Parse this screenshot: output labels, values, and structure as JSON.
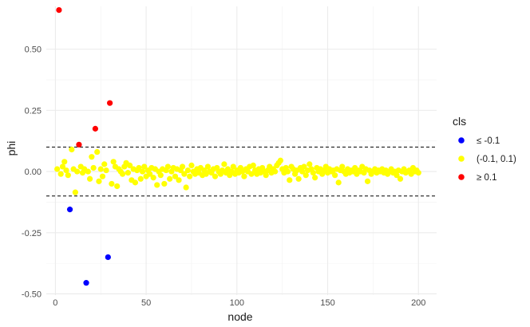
{
  "chart_data": {
    "type": "scatter",
    "xlabel": "node",
    "ylabel": "phi",
    "xlim": [
      -5,
      210
    ],
    "ylim": [
      -0.505,
      0.675
    ],
    "x_ticks": [
      0,
      50,
      100,
      150,
      200
    ],
    "x_tick_labels": [
      "0",
      "50",
      "100",
      "150",
      "200"
    ],
    "y_ticks": [
      -0.5,
      -0.25,
      0,
      0.25,
      0.5
    ],
    "y_tick_labels": [
      "-0.50",
      "-0.25",
      "0.00",
      "0.25",
      "0.50"
    ],
    "grid": true,
    "reference_lines": [
      0.1,
      -0.1
    ],
    "legend": {
      "title": "cls",
      "position": "right",
      "entries": [
        {
          "label": "≤ -0.1",
          "color": "#0000ff"
        },
        {
          "label": "(-0.1, 0.1)",
          "color": "#ffff00"
        },
        {
          "label": "≥ 0.1",
          "color": "#ff0000"
        }
      ]
    },
    "series": [
      {
        "class": "low",
        "color": "#0000ff",
        "points": [
          [
            8,
            -0.155
          ],
          [
            17,
            -0.455
          ],
          [
            29,
            -0.35
          ]
        ]
      },
      {
        "class": "high",
        "color": "#ff0000",
        "points": [
          [
            2,
            0.66
          ],
          [
            13,
            0.11
          ],
          [
            22,
            0.175
          ],
          [
            30,
            0.28
          ]
        ]
      },
      {
        "class": "mid",
        "color": "#ffff00",
        "points": [
          [
            1,
            0.01
          ],
          [
            3,
            -0.01
          ],
          [
            4,
            0.02
          ],
          [
            5,
            0.04
          ],
          [
            6,
            0.005
          ],
          [
            7,
            -0.015
          ],
          [
            9,
            0.09
          ],
          [
            10,
            0.01
          ],
          [
            11,
            -0.085
          ],
          [
            12,
            0.0
          ],
          [
            14,
            0.02
          ],
          [
            15,
            -0.005
          ],
          [
            16,
            0.01
          ],
          [
            18,
            0.0
          ],
          [
            19,
            -0.03
          ],
          [
            20,
            0.06
          ],
          [
            21,
            0.015
          ],
          [
            23,
            0.08
          ],
          [
            24,
            -0.04
          ],
          [
            25,
            0.01
          ],
          [
            26,
            -0.02
          ],
          [
            27,
            0.03
          ],
          [
            28,
            0.005
          ],
          [
            31,
            -0.05
          ],
          [
            32,
            0.04
          ],
          [
            33,
            0.02
          ],
          [
            34,
            -0.06
          ],
          [
            35,
            0.01
          ],
          [
            36,
            0.0
          ],
          [
            37,
            -0.01
          ],
          [
            38,
            0.02
          ],
          [
            39,
            0.035
          ],
          [
            40,
            -0.005
          ],
          [
            41,
            0.025
          ],
          [
            42,
            -0.035
          ],
          [
            43,
            0.01
          ],
          [
            44,
            -0.045
          ],
          [
            45,
            0.005
          ],
          [
            46,
            0.015
          ],
          [
            47,
            -0.03
          ],
          [
            48,
            0.0
          ],
          [
            49,
            0.02
          ],
          [
            50,
            -0.02
          ],
          [
            51,
            0.005
          ],
          [
            52,
            -0.01
          ],
          [
            53,
            0.015
          ],
          [
            54,
            -0.025
          ],
          [
            55,
            0.01
          ],
          [
            56,
            -0.055
          ],
          [
            57,
            0.0
          ],
          [
            58,
            -0.015
          ],
          [
            59,
            0.01
          ],
          [
            60,
            -0.05
          ],
          [
            61,
            0.005
          ],
          [
            62,
            0.02
          ],
          [
            63,
            -0.03
          ],
          [
            64,
            0.0
          ],
          [
            65,
            0.015
          ],
          [
            66,
            -0.02
          ],
          [
            67,
            0.01
          ],
          [
            68,
            -0.035
          ],
          [
            69,
            0.005
          ],
          [
            70,
            0.02
          ],
          [
            71,
            -0.01
          ],
          [
            72,
            -0.065
          ],
          [
            73,
            0.005
          ],
          [
            74,
            -0.02
          ],
          [
            75,
            0.025
          ],
          [
            76,
            0.0
          ],
          [
            77,
            -0.01
          ],
          [
            78,
            0.01
          ],
          [
            79,
            -0.005
          ],
          [
            80,
            0.015
          ],
          [
            81,
            -0.015
          ],
          [
            82,
            0.005
          ],
          [
            83,
            -0.01
          ],
          [
            84,
            0.02
          ],
          [
            85,
            0.0
          ],
          [
            86,
            -0.005
          ],
          [
            87,
            0.01
          ],
          [
            88,
            -0.02
          ],
          [
            89,
            0.015
          ],
          [
            90,
            0.0
          ],
          [
            91,
            -0.01
          ],
          [
            92,
            0.005
          ],
          [
            93,
            0.03
          ],
          [
            94,
            -0.005
          ],
          [
            95,
            0.01
          ],
          [
            96,
            -0.015
          ],
          [
            97,
            0.0
          ],
          [
            98,
            0.02
          ],
          [
            99,
            -0.01
          ],
          [
            100,
            0.005
          ],
          [
            101,
            -0.005
          ],
          [
            102,
            0.015
          ],
          [
            103,
            0.0
          ],
          [
            104,
            -0.02
          ],
          [
            105,
            0.01
          ],
          [
            106,
            0.0
          ],
          [
            107,
            0.02
          ],
          [
            108,
            -0.01
          ],
          [
            109,
            0.025
          ],
          [
            110,
            0.005
          ],
          [
            111,
            -0.01
          ],
          [
            112,
            0.01
          ],
          [
            113,
            -0.005
          ],
          [
            114,
            0.015
          ],
          [
            115,
            0.0
          ],
          [
            116,
            -0.015
          ],
          [
            117,
            0.005
          ],
          [
            118,
            0.02
          ],
          [
            119,
            -0.005
          ],
          [
            120,
            0.01
          ],
          [
            121,
            0.0
          ],
          [
            122,
            0.025
          ],
          [
            123,
            0.035
          ],
          [
            124,
            0.045
          ],
          [
            125,
            0.01
          ],
          [
            126,
            -0.005
          ],
          [
            127,
            0.015
          ],
          [
            128,
            0.0
          ],
          [
            129,
            -0.035
          ],
          [
            130,
            0.02
          ],
          [
            131,
            0.01
          ],
          [
            132,
            -0.01
          ],
          [
            133,
            0.005
          ],
          [
            134,
            -0.03
          ],
          [
            135,
            0.015
          ],
          [
            136,
            0.0
          ],
          [
            137,
            0.02
          ],
          [
            138,
            -0.015
          ],
          [
            139,
            0.005
          ],
          [
            140,
            0.03
          ],
          [
            141,
            0.01
          ],
          [
            142,
            -0.005
          ],
          [
            143,
            -0.025
          ],
          [
            144,
            0.015
          ],
          [
            145,
            0.0
          ],
          [
            146,
            0.01
          ],
          [
            147,
            -0.01
          ],
          [
            148,
            0.005
          ],
          [
            149,
            0.02
          ],
          [
            150,
            -0.005
          ],
          [
            151,
            0.01
          ],
          [
            152,
            0.0
          ],
          [
            153,
            0.005
          ],
          [
            154,
            -0.015
          ],
          [
            155,
            0.01
          ],
          [
            156,
            -0.045
          ],
          [
            157,
            0.005
          ],
          [
            158,
            0.02
          ],
          [
            159,
            0.0
          ],
          [
            160,
            -0.01
          ],
          [
            161,
            0.01
          ],
          [
            162,
            -0.005
          ],
          [
            163,
            0.005
          ],
          [
            164,
            0.0
          ],
          [
            165,
            0.015
          ],
          [
            166,
            -0.01
          ],
          [
            167,
            0.005
          ],
          [
            168,
            0.0
          ],
          [
            169,
            0.02
          ],
          [
            170,
            -0.005
          ],
          [
            171,
            0.01
          ],
          [
            172,
            -0.04
          ],
          [
            173,
            0.005
          ],
          [
            174,
            -0.01
          ],
          [
            175,
            0.0
          ],
          [
            176,
            0.01
          ],
          [
            177,
            -0.005
          ],
          [
            178,
            0.005
          ],
          [
            179,
            0.0
          ],
          [
            180,
            0.01
          ],
          [
            181,
            -0.005
          ],
          [
            182,
            0.005
          ],
          [
            183,
            -0.01
          ],
          [
            184,
            0.0
          ],
          [
            185,
            0.01
          ],
          [
            186,
            -0.005
          ],
          [
            187,
            0.0
          ],
          [
            188,
            -0.015
          ],
          [
            189,
            0.005
          ],
          [
            190,
            -0.03
          ],
          [
            191,
            0.0
          ],
          [
            192,
            0.01
          ],
          [
            193,
            -0.005
          ],
          [
            194,
            0.0
          ],
          [
            195,
            0.005
          ],
          [
            196,
            -0.01
          ],
          [
            197,
            0.015
          ],
          [
            198,
            0.0
          ],
          [
            199,
            0.005
          ],
          [
            200,
            -0.005
          ]
        ]
      }
    ]
  }
}
